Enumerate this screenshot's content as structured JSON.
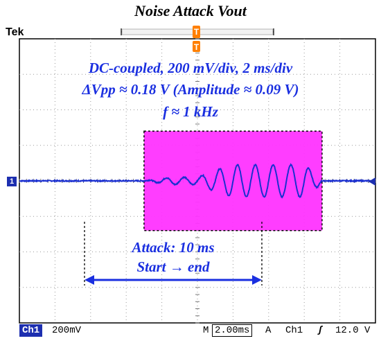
{
  "title": "Noise Attack Vout",
  "brand": "Tek",
  "annotations": {
    "line1": "DC-coupled, 200 mV/div, 2 ms/div",
    "line2": "ΔVpp ≈ 0.18 V (Amplitude ≈ 0.09 V)",
    "line3": "f ≈ 1 kHz",
    "attack_line1": "Attack: 10 ms",
    "attack_line2": "Start → end"
  },
  "status_bar": {
    "channel": "Ch1",
    "volts_per_div": "200mV",
    "timebase_prefix": "M",
    "timebase": "2.00ms",
    "trigger_mode": "A",
    "trigger_channel": "Ch1",
    "trigger_slope": "ʃ",
    "trigger_level": "12.0 V"
  },
  "channel_marker": "1",
  "trigger_marker": "T",
  "colors": {
    "trace": "#1a2fd0",
    "attack_fill": "#ff33ff",
    "annotation": "#1a2fe0",
    "channel_box": "#1d2fb0",
    "trigger_marker": "#ff7f00"
  },
  "chart_data": {
    "type": "line",
    "title": "Noise Attack Vout",
    "xlabel": "",
    "ylabel": "",
    "x_unit": "ms",
    "y_unit": "V",
    "x_range": [
      -10,
      10
    ],
    "y_range": [
      -0.8,
      0.8
    ],
    "x_per_div_ms": 2,
    "y_per_div_V": 0.2,
    "grid": true,
    "attack_start_ms": -3.0,
    "attack_end_ms": 7.0,
    "attack_duration_ms": 10,
    "frequency_kHz": 1,
    "amplitude_V": 0.09,
    "vpp_V": 0.18,
    "envelope_points": [
      {
        "t_ms": -3.0,
        "amp_V": 0.0
      },
      {
        "t_ms": -1.5,
        "amp_V": 0.02
      },
      {
        "t_ms": 0.0,
        "amp_V": 0.02
      },
      {
        "t_ms": 1.0,
        "amp_V": 0.06
      },
      {
        "t_ms": 2.0,
        "amp_V": 0.09
      },
      {
        "t_ms": 6.0,
        "amp_V": 0.09
      },
      {
        "t_ms": 6.8,
        "amp_V": 0.03
      },
      {
        "t_ms": 7.0,
        "amp_V": 0.0
      }
    ]
  }
}
